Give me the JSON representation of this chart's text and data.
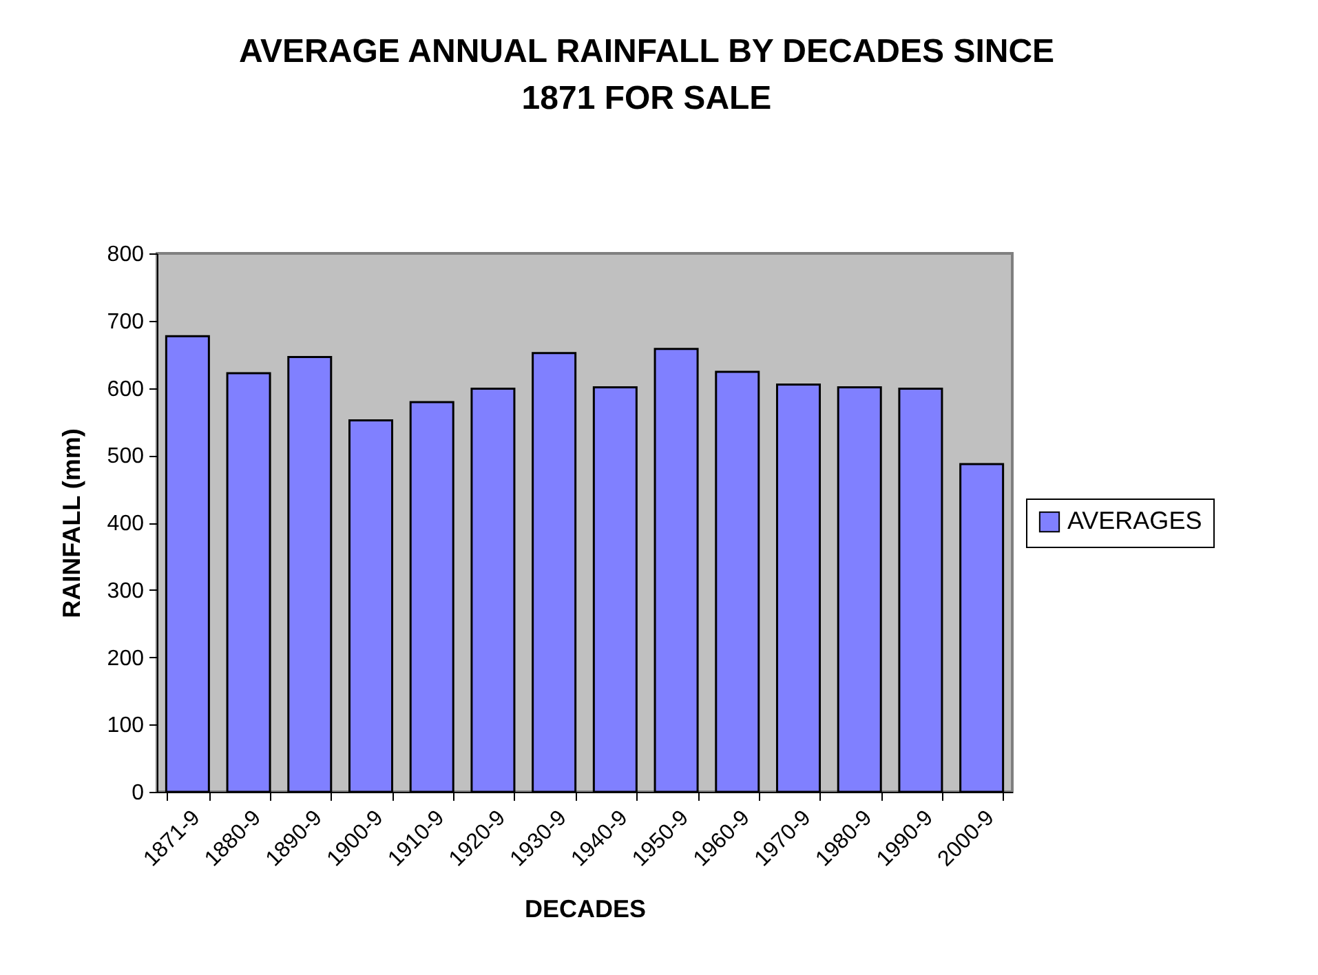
{
  "chart_data": {
    "type": "bar",
    "title": "AVERAGE ANNUAL RAINFALL BY DECADES SINCE 1871 FOR SALE",
    "xlabel": "DECADES",
    "ylabel": "RAINFALL (mm)",
    "categories": [
      "1871-9",
      "1880-9",
      "1890-9",
      "1900-9",
      "1910-9",
      "1920-9",
      "1930-9",
      "1940-9",
      "1950-9",
      "1960-9",
      "1970-9",
      "1980-9",
      "1990-9",
      "2000-9"
    ],
    "series": [
      {
        "name": "AVERAGES",
        "color": "#8080ff",
        "values": [
          677,
          622,
          646,
          552,
          579,
          599,
          652,
          601,
          658,
          624,
          605,
          601,
          599,
          487
        ]
      }
    ],
    "ylim": [
      0,
      800
    ],
    "yticks": [
      0,
      100,
      200,
      300,
      400,
      500,
      600,
      700,
      800
    ],
    "grid": false,
    "legend": "right"
  }
}
